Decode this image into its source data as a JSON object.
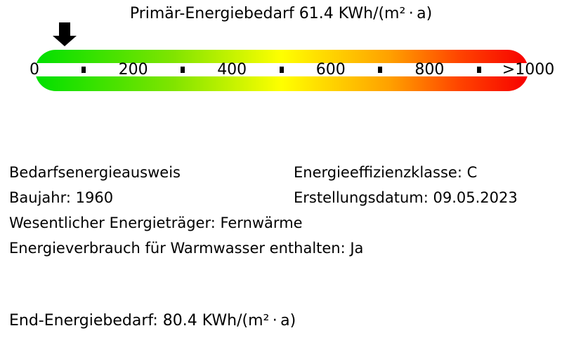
{
  "title": "Primär-Energiebedarf 61.4 KWh/(m² · a)",
  "chart_data": {
    "type": "gauge",
    "title": "Primär-Energiebedarf 61.4 KWh/(m²·a)",
    "metric": "Primär-Energiebedarf",
    "value": 61.4,
    "unit": "KWh/(m²·a)",
    "axis_min": 0,
    "axis_max": 1000,
    "major_ticks": [
      {
        "value": 0,
        "label": "0"
      },
      {
        "value": 200,
        "label": "200"
      },
      {
        "value": 400,
        "label": "400"
      },
      {
        "value": 600,
        "label": "600"
      },
      {
        "value": 800,
        "label": "800"
      },
      {
        "value": 1000,
        "label": ">1000"
      }
    ],
    "minor_tick_values": [
      100,
      300,
      500,
      700,
      900
    ],
    "pointer_color": "#000000",
    "gradient_stops": [
      {
        "color": "#00e000",
        "pos": 0
      },
      {
        "color": "#80e400",
        "pos": 28
      },
      {
        "color": "#ffff00",
        "pos": 50
      },
      {
        "color": "#ffa000",
        "pos": 72
      },
      {
        "color": "#ff4400",
        "pos": 86
      },
      {
        "color": "#f70000",
        "pos": 100
      }
    ]
  },
  "details": {
    "left": [
      "Bedarfsenergieausweis",
      "Baujahr: 1960",
      "Wesentlicher Energieträger: Fernwärme",
      "Energieverbrauch für Warmwasser enthalten: Ja"
    ],
    "right": [
      "Energieeffizienzklasse: C",
      "Erstellungsdatum: 09.05.2023"
    ]
  },
  "footer": "End-Energiebedarf: 80.4 KWh/(m² · a)"
}
